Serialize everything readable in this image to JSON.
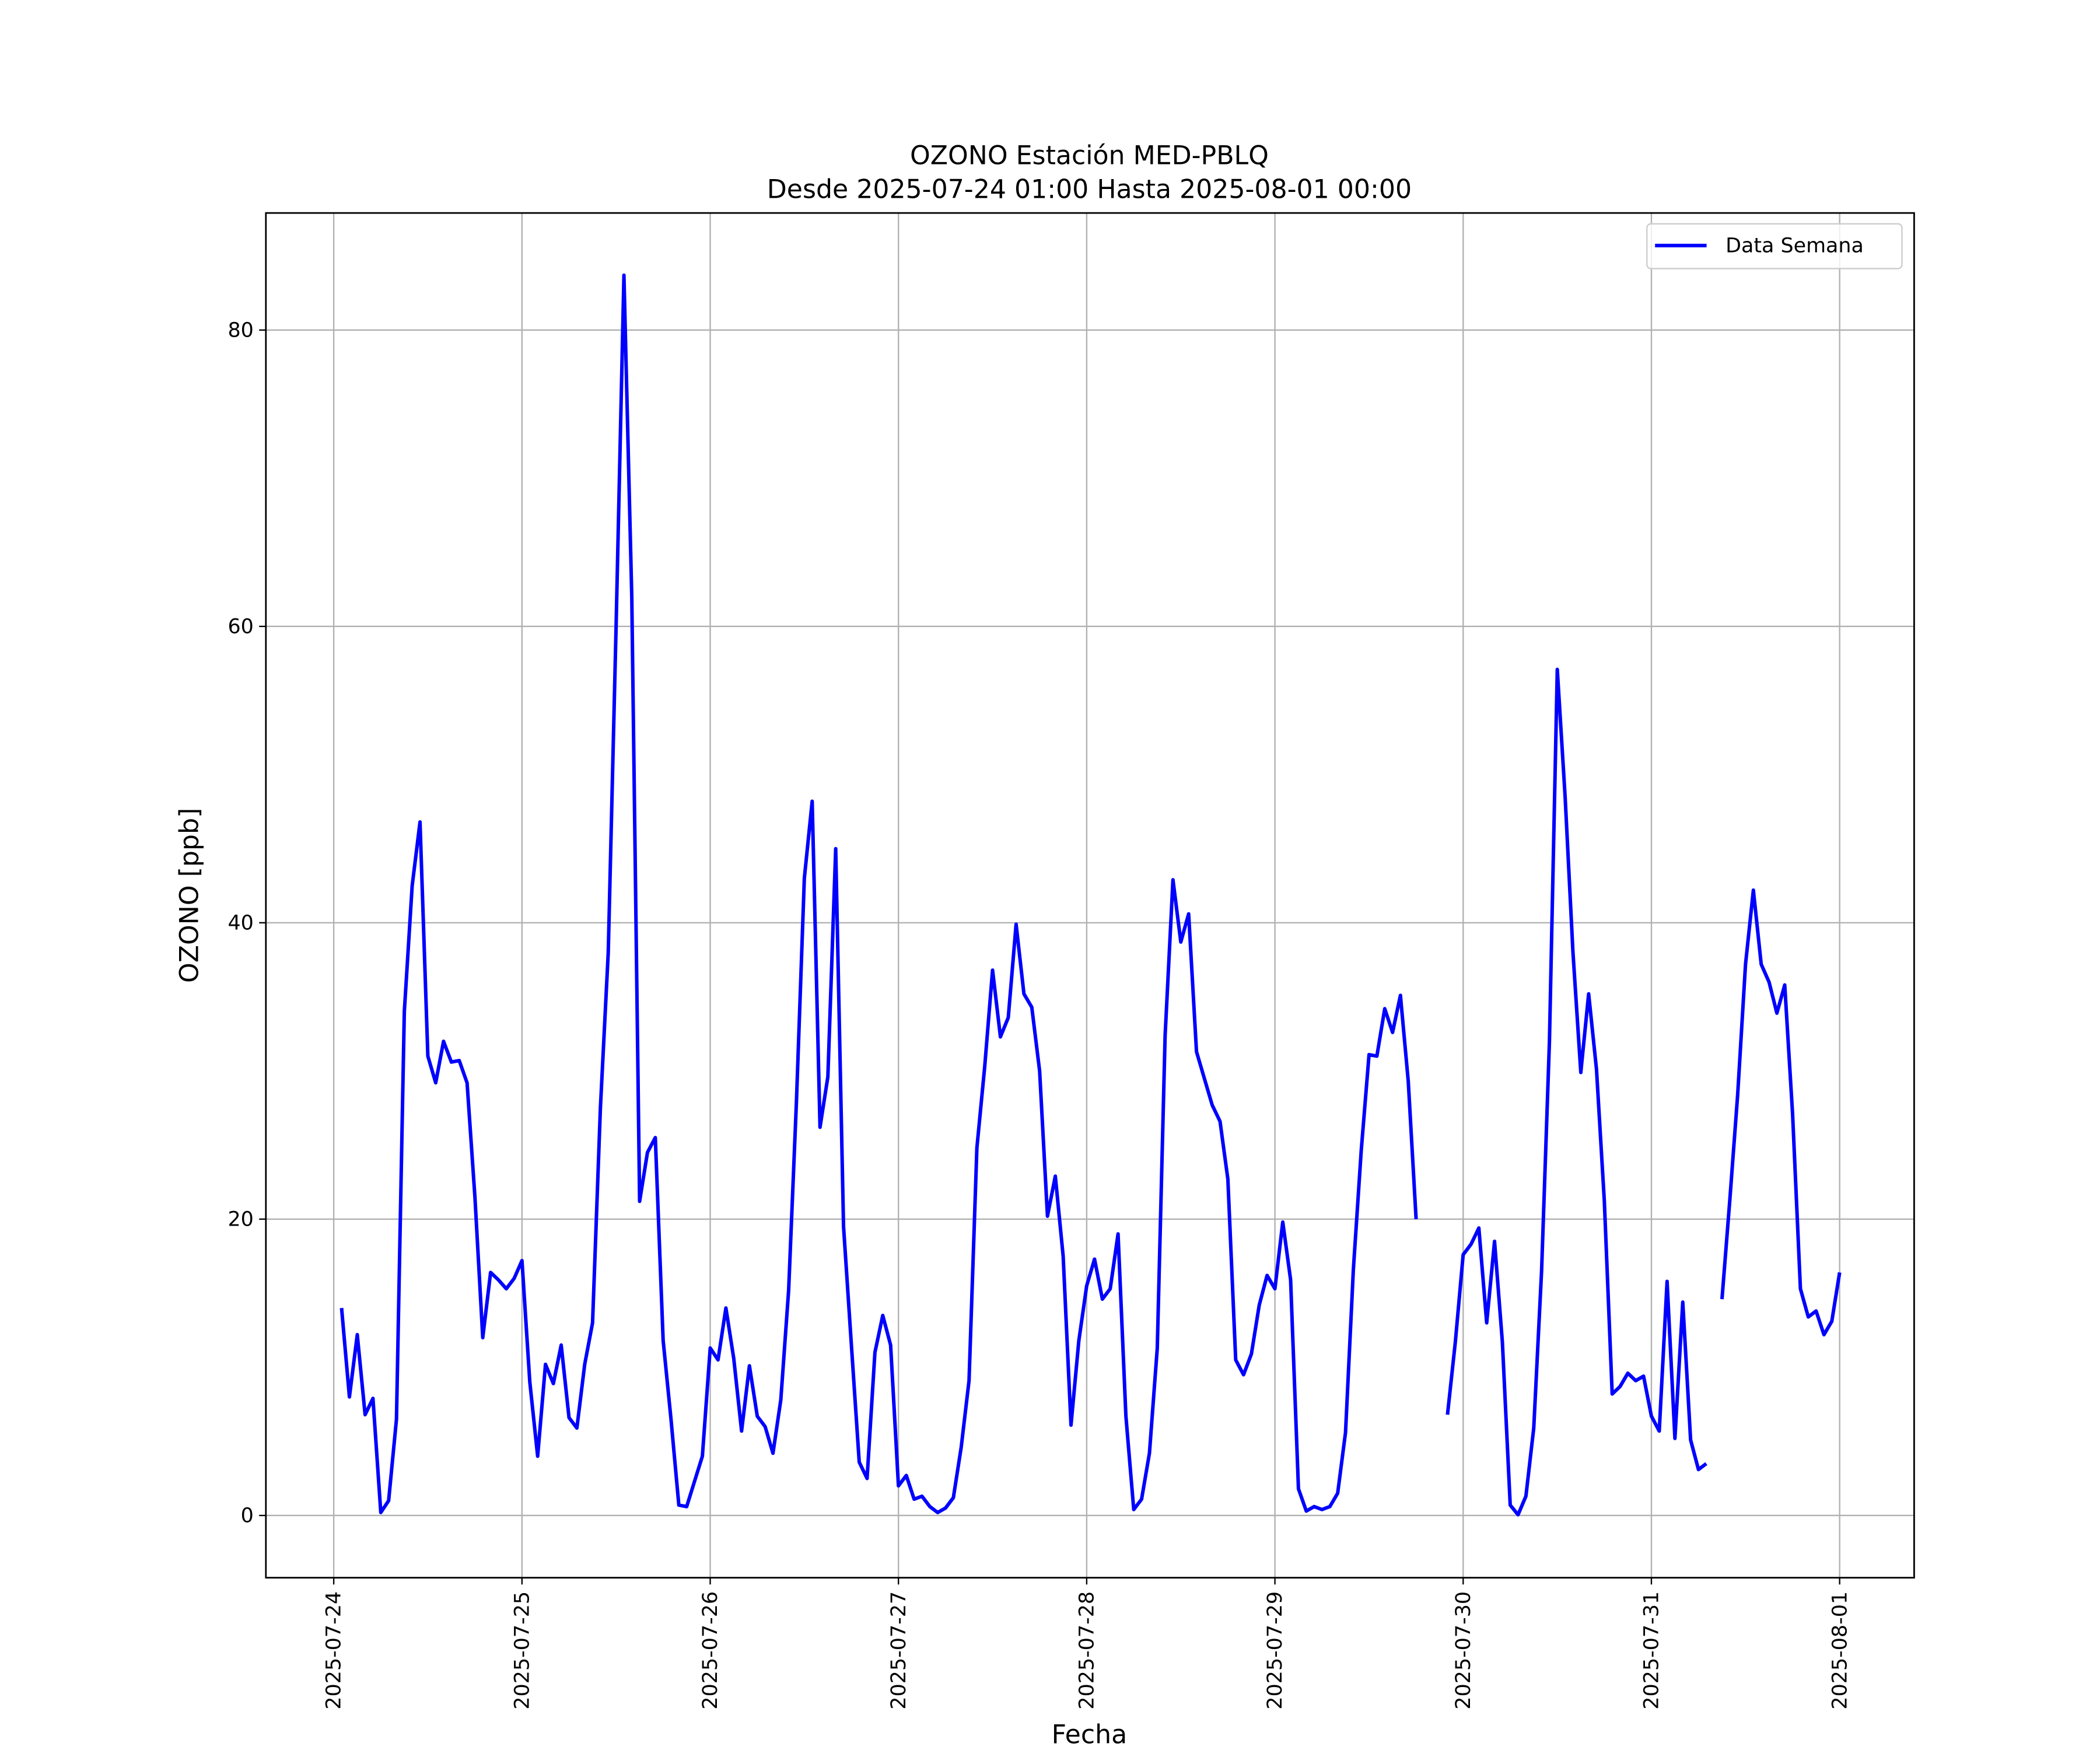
{
  "chart_data": {
    "type": "line",
    "title": "OZONO Estación MED-PBLQ",
    "subtitle": "Desde 2025-07-24 01:00 Hasta 2025-08-01 00:00",
    "xlabel": "Fecha",
    "ylabel": "OZONO [ppb]",
    "legend": "upper right",
    "grid": true,
    "xlim": [
      "2025-07-23 15:21",
      "2025-08-01 09:30"
    ],
    "xticks": [
      "2025-07-24",
      "2025-07-25",
      "2025-07-26",
      "2025-07-27",
      "2025-07-28",
      "2025-07-29",
      "2025-07-30",
      "2025-07-31",
      "2025-08-01"
    ],
    "ylim": [
      -4.2,
      87.9
    ],
    "yticks": [
      0,
      20,
      40,
      60,
      80
    ],
    "x": [
      "2025-07-24 01:00",
      "2025-07-24 02:00",
      "2025-07-24 03:00",
      "2025-07-24 04:00",
      "2025-07-24 05:00",
      "2025-07-24 06:00",
      "2025-07-24 07:00",
      "2025-07-24 08:00",
      "2025-07-24 09:00",
      "2025-07-24 10:00",
      "2025-07-24 11:00",
      "2025-07-24 12:00",
      "2025-07-24 13:00",
      "2025-07-24 14:00",
      "2025-07-24 15:00",
      "2025-07-24 16:00",
      "2025-07-24 17:00",
      "2025-07-24 18:00",
      "2025-07-24 19:00",
      "2025-07-24 20:00",
      "2025-07-24 21:00",
      "2025-07-24 22:00",
      "2025-07-24 23:00",
      "2025-07-25 00:00",
      "2025-07-25 01:00",
      "2025-07-25 02:00",
      "2025-07-25 03:00",
      "2025-07-25 04:00",
      "2025-07-25 05:00",
      "2025-07-25 06:00",
      "2025-07-25 07:00",
      "2025-07-25 08:00",
      "2025-07-25 09:00",
      "2025-07-25 10:00",
      "2025-07-25 11:00",
      "2025-07-25 12:00",
      "2025-07-25 13:00",
      "2025-07-25 14:00",
      "2025-07-25 15:00",
      "2025-07-25 16:00",
      "2025-07-25 17:00",
      "2025-07-25 18:00",
      "2025-07-25 19:00",
      "2025-07-25 20:00",
      "2025-07-25 21:00",
      "2025-07-25 22:00",
      "2025-07-25 23:00",
      "2025-07-26 00:00",
      "2025-07-26 01:00",
      "2025-07-26 02:00",
      "2025-07-26 03:00",
      "2025-07-26 04:00",
      "2025-07-26 05:00",
      "2025-07-26 06:00",
      "2025-07-26 07:00",
      "2025-07-26 08:00",
      "2025-07-26 09:00",
      "2025-07-26 10:00",
      "2025-07-26 11:00",
      "2025-07-26 12:00",
      "2025-07-26 13:00",
      "2025-07-26 14:00",
      "2025-07-26 15:00",
      "2025-07-26 16:00",
      "2025-07-26 17:00",
      "2025-07-26 18:00",
      "2025-07-26 19:00",
      "2025-07-26 20:00",
      "2025-07-26 21:00",
      "2025-07-26 22:00",
      "2025-07-26 23:00",
      "2025-07-27 00:00",
      "2025-07-27 01:00",
      "2025-07-27 02:00",
      "2025-07-27 03:00",
      "2025-07-27 04:00",
      "2025-07-27 05:00",
      "2025-07-27 06:00",
      "2025-07-27 07:00",
      "2025-07-27 08:00",
      "2025-07-27 09:00",
      "2025-07-27 10:00",
      "2025-07-27 11:00",
      "2025-07-27 12:00",
      "2025-07-27 13:00",
      "2025-07-27 14:00",
      "2025-07-27 15:00",
      "2025-07-27 16:00",
      "2025-07-27 17:00",
      "2025-07-27 18:00",
      "2025-07-27 19:00",
      "2025-07-27 20:00",
      "2025-07-27 21:00",
      "2025-07-27 22:00",
      "2025-07-27 23:00",
      "2025-07-28 00:00",
      "2025-07-28 01:00",
      "2025-07-28 02:00",
      "2025-07-28 03:00",
      "2025-07-28 04:00",
      "2025-07-28 05:00",
      "2025-07-28 06:00",
      "2025-07-28 07:00",
      "2025-07-28 08:00",
      "2025-07-28 09:00",
      "2025-07-28 10:00",
      "2025-07-28 11:00",
      "2025-07-28 12:00",
      "2025-07-28 13:00",
      "2025-07-28 14:00",
      "2025-07-28 15:00",
      "2025-07-28 16:00",
      "2025-07-28 17:00",
      "2025-07-28 18:00",
      "2025-07-28 19:00",
      "2025-07-28 20:00",
      "2025-07-28 21:00",
      "2025-07-28 22:00",
      "2025-07-28 23:00",
      "2025-07-29 00:00",
      "2025-07-29 01:00",
      "2025-07-29 02:00",
      "2025-07-29 03:00",
      "2025-07-29 04:00",
      "2025-07-29 05:00",
      "2025-07-29 06:00",
      "2025-07-29 07:00",
      "2025-07-29 08:00",
      "2025-07-29 09:00",
      "2025-07-29 10:00",
      "2025-07-29 11:00",
      "2025-07-29 12:00",
      "2025-07-29 13:00",
      "2025-07-29 14:00",
      "2025-07-29 15:00",
      "2025-07-29 16:00",
      "2025-07-29 17:00",
      "2025-07-29 18:00",
      "2025-07-29 19:00",
      "2025-07-29 20:00",
      "2025-07-29 21:00",
      "2025-07-29 22:00",
      "2025-07-29 23:00",
      "2025-07-30 00:00",
      "2025-07-30 01:00",
      "2025-07-30 02:00",
      "2025-07-30 03:00",
      "2025-07-30 04:00",
      "2025-07-30 05:00",
      "2025-07-30 06:00",
      "2025-07-30 07:00",
      "2025-07-30 08:00",
      "2025-07-30 09:00",
      "2025-07-30 10:00",
      "2025-07-30 11:00",
      "2025-07-30 12:00",
      "2025-07-30 13:00",
      "2025-07-30 14:00",
      "2025-07-30 15:00",
      "2025-07-30 16:00",
      "2025-07-30 17:00",
      "2025-07-30 18:00",
      "2025-07-30 19:00",
      "2025-07-30 20:00",
      "2025-07-30 21:00",
      "2025-07-30 22:00",
      "2025-07-30 23:00",
      "2025-07-31 00:00",
      "2025-07-31 01:00",
      "2025-07-31 02:00",
      "2025-07-31 03:00",
      "2025-07-31 04:00",
      "2025-07-31 05:00",
      "2025-07-31 06:00",
      "2025-07-31 07:00",
      "2025-07-31 08:00",
      "2025-07-31 09:00",
      "2025-07-31 10:00",
      "2025-07-31 11:00",
      "2025-07-31 12:00",
      "2025-07-31 13:00",
      "2025-07-31 14:00",
      "2025-07-31 15:00",
      "2025-07-31 16:00",
      "2025-07-31 17:00",
      "2025-07-31 18:00",
      "2025-07-31 19:00",
      "2025-07-31 20:00",
      "2025-07-31 21:00",
      "2025-07-31 22:00",
      "2025-07-31 23:00",
      "2025-08-01 00:00"
    ],
    "series": [
      {
        "name": "Data Semana",
        "color": "#0000ff",
        "values": [
          14.0,
          8.0,
          12.2,
          6.8,
          7.9,
          0.2,
          1.0,
          6.5,
          34.0,
          42.5,
          46.8,
          31.0,
          29.2,
          32.0,
          30.6,
          30.7,
          29.2,
          21.5,
          12.0,
          16.4,
          15.9,
          15.3,
          16.0,
          17.2,
          9.0,
          4.0,
          10.2,
          8.9,
          11.5,
          6.6,
          5.9,
          10.2,
          13.0,
          27.5,
          38.0,
          60.0,
          83.7,
          62.0,
          21.2,
          24.5,
          25.5,
          11.8,
          6.5,
          0.7,
          0.6,
          2.3,
          4.0,
          11.3,
          10.5,
          14.0,
          10.6,
          5.7,
          10.1,
          6.7,
          6.0,
          4.2,
          7.8,
          15.2,
          28.0,
          43.0,
          48.2,
          26.2,
          29.6,
          45.0,
          19.5,
          11.5,
          3.6,
          2.5,
          11.0,
          13.5,
          11.5,
          2.0,
          2.7,
          1.1,
          1.3,
          0.6,
          0.2,
          0.5,
          1.2,
          4.6,
          9.1,
          24.8,
          30.3,
          36.8,
          32.3,
          33.6,
          39.9,
          35.2,
          34.3,
          30.0,
          20.2,
          22.9,
          17.5,
          6.1,
          11.8,
          15.5,
          17.3,
          14.6,
          15.3,
          19.0,
          6.7,
          0.4,
          1.1,
          4.2,
          11.3,
          32.4,
          42.9,
          38.7,
          40.6,
          31.3,
          29.5,
          27.7,
          26.6,
          22.7,
          10.5,
          9.5,
          10.9,
          14.2,
          16.2,
          15.3,
          19.8,
          15.9,
          1.8,
          0.3,
          0.6,
          0.4,
          0.6,
          1.5,
          5.6,
          16.6,
          24.6,
          31.1,
          31.0,
          34.2,
          32.6,
          35.1,
          29.3,
          20.0,
          null,
          null,
          null,
          6.8,
          11.7,
          17.6,
          18.3,
          19.4,
          13.0,
          18.5,
          11.7,
          0.7,
          0.05,
          1.3,
          5.9,
          16.5,
          32.0,
          57.1,
          48.5,
          38.0,
          29.9,
          35.2,
          30.1,
          21.2,
          8.2,
          8.7,
          9.6,
          9.1,
          9.4,
          6.7,
          5.7,
          15.8,
          5.2,
          14.4,
          5.1,
          3.1,
          3.5,
          null,
          14.6,
          21.3,
          28.4,
          37.2,
          42.2,
          37.2,
          36.0,
          33.9,
          35.8,
          27.1,
          15.3,
          13.4,
          13.8,
          12.2,
          13.1,
          16.4
        ]
      }
    ]
  }
}
